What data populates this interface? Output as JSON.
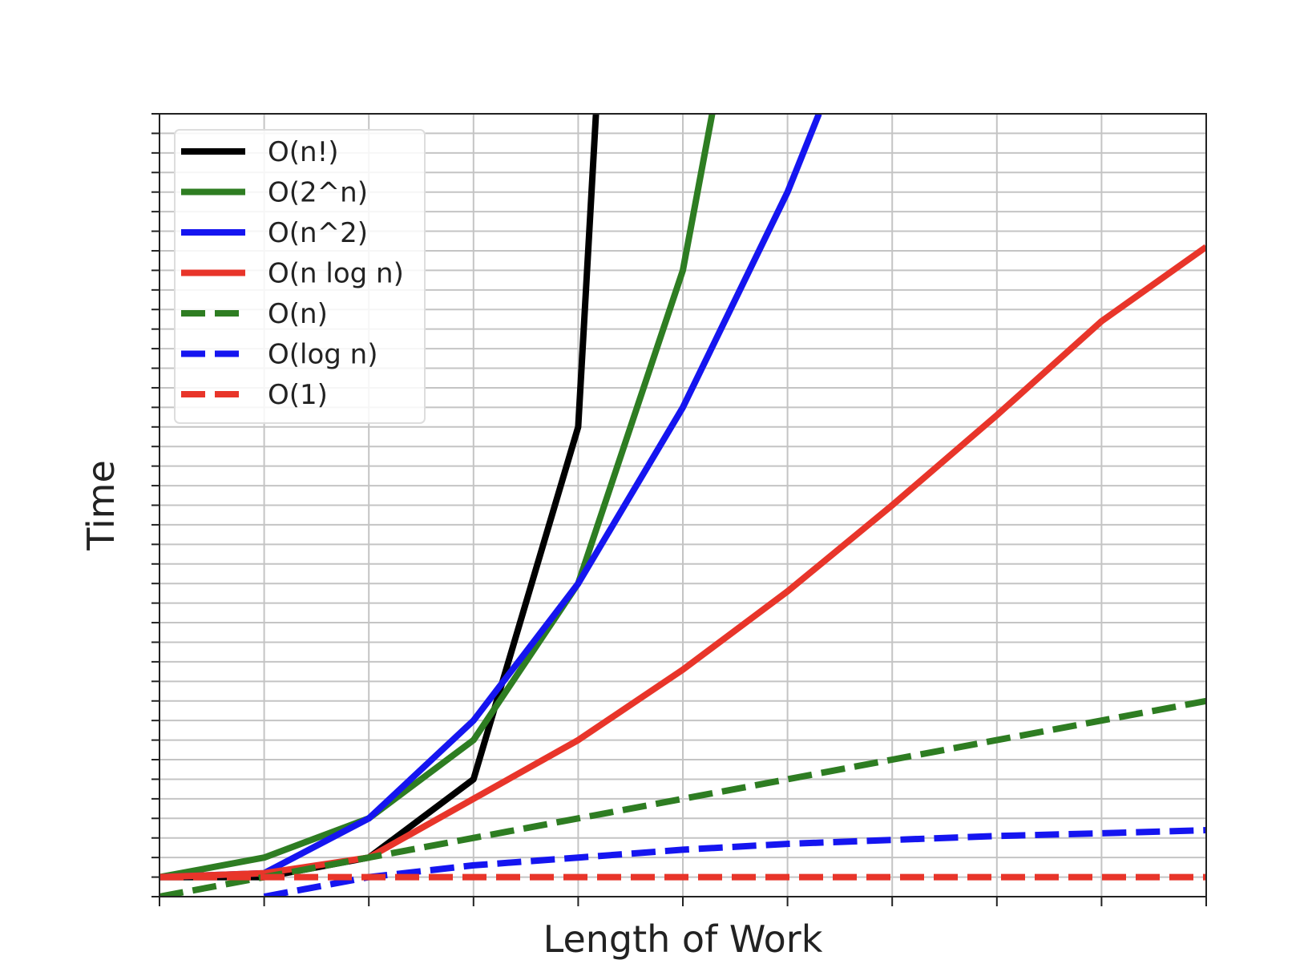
{
  "chart_data": {
    "type": "line",
    "title": "",
    "xlabel": "Length of Work",
    "ylabel": "Time",
    "xlim": [
      1,
      11
    ],
    "ylim": [
      0,
      20
    ],
    "grid": true,
    "legend_placement": "top-left",
    "x": [
      1,
      2,
      3,
      4,
      5,
      6,
      7,
      8,
      9,
      10,
      11
    ],
    "series": [
      {
        "name": "O(n!)",
        "color": "#000000",
        "style": "solid",
        "x": [
          1,
          2,
          3,
          4,
          5,
          5.17
        ],
        "values": [
          0.5,
          0.5,
          1.0,
          3.0,
          12.0,
          20.0
        ]
      },
      {
        "name": "O(2^n)",
        "color": "#2e7d22",
        "style": "solid",
        "x": [
          1,
          2,
          3,
          4,
          5,
          6,
          6.28
        ],
        "values": [
          0.5,
          1.0,
          2.0,
          4.0,
          8.0,
          16.0,
          20.0
        ]
      },
      {
        "name": "O(n^2)",
        "color": "#1515f0",
        "style": "solid",
        "x": [
          1,
          2,
          3,
          4,
          5,
          6,
          7,
          7.3
        ],
        "values": [
          0.5,
          0.6,
          2.0,
          4.5,
          8.0,
          12.5,
          18.0,
          20.0
        ]
      },
      {
        "name": "O(n log n)",
        "color": "#e8352a",
        "style": "solid",
        "x": [
          1,
          2,
          3,
          4,
          5,
          6,
          7,
          8,
          9,
          10,
          11
        ],
        "values": [
          0.5,
          0.6,
          1.0,
          2.5,
          4.0,
          5.8,
          7.8,
          10.0,
          12.3,
          14.7,
          16.6
        ]
      },
      {
        "name": "O(n)",
        "color": "#2e7d22",
        "style": "dashed",
        "x": [
          1,
          2,
          3,
          4,
          5,
          6,
          7,
          8,
          9,
          10,
          11
        ],
        "values": [
          0,
          0.5,
          1.0,
          1.5,
          2.0,
          2.5,
          3.0,
          3.5,
          4.0,
          4.5,
          5.0
        ]
      },
      {
        "name": "O(log n)",
        "color": "#1515f0",
        "style": "dashed",
        "x": [
          2,
          3,
          4,
          5,
          6,
          7,
          8,
          9,
          10,
          11
        ],
        "values": [
          0,
          0.5,
          0.8,
          1.0,
          1.2,
          1.35,
          1.45,
          1.55,
          1.62,
          1.7
        ]
      },
      {
        "name": "O(1)",
        "color": "#e8352a",
        "style": "dashed",
        "x": [
          1,
          2,
          3,
          4,
          5,
          6,
          7,
          8,
          9,
          10,
          11
        ],
        "values": [
          0.5,
          0.5,
          0.5,
          0.5,
          0.5,
          0.5,
          0.5,
          0.5,
          0.5,
          0.5,
          0.5
        ]
      }
    ]
  }
}
